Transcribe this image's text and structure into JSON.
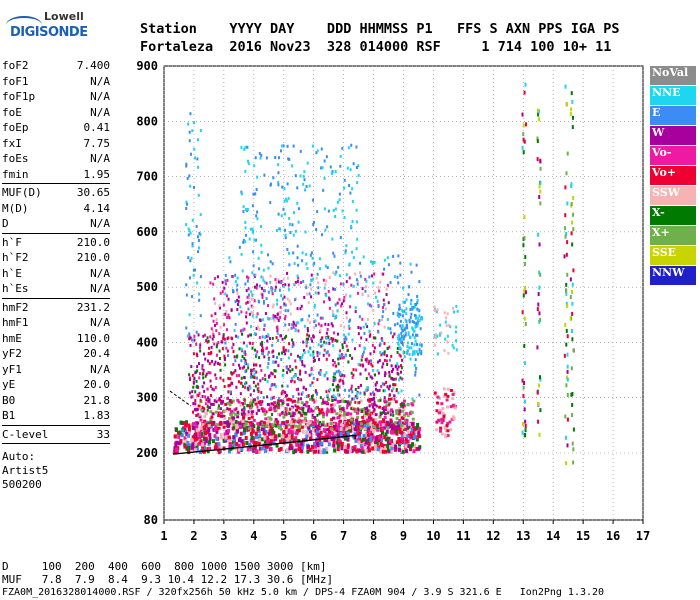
{
  "logo": {
    "line1": "Lowell",
    "line2": "DIGISONDE"
  },
  "header": {
    "line1": "Station    YYYY DAY    DDD HHMMSS P1   FFS S AXN PPS IGA PS",
    "line2": "Fortaleza  2016 Nov23  328 014000 RSF     1 714 100 10+ 11"
  },
  "params_groups": [
    [
      [
        "foF2",
        "7.400"
      ],
      [
        "foF1",
        "N/A"
      ],
      [
        "foF1p",
        "N/A"
      ],
      [
        "foE",
        "N/A"
      ],
      [
        "foEp",
        "0.41"
      ],
      [
        "fxI",
        "7.75"
      ],
      [
        "foEs",
        "N/A"
      ],
      [
        "fmin",
        "1.95"
      ]
    ],
    [
      [
        "MUF(D)",
        "30.65"
      ],
      [
        "M(D)",
        "4.14"
      ],
      [
        "D",
        "N/A"
      ]
    ],
    [
      [
        "h`F",
        "210.0"
      ],
      [
        "h`F2",
        "210.0"
      ],
      [
        "h`E",
        "N/A"
      ],
      [
        "h`Es",
        "N/A"
      ]
    ],
    [
      [
        "hmF2",
        "231.2"
      ],
      [
        "hmF1",
        "N/A"
      ],
      [
        "hmE",
        "110.0"
      ],
      [
        "yF2",
        "20.4"
      ],
      [
        "yF1",
        "N/A"
      ],
      [
        "yE",
        "20.0"
      ],
      [
        "B0",
        "21.8"
      ],
      [
        "B1",
        "1.83"
      ]
    ],
    [
      [
        "C-level",
        "33"
      ]
    ]
  ],
  "auto": {
    "l1": "Auto:",
    "l2": "Artist5",
    "l3": "500200"
  },
  "legend": [
    {
      "label": "NoVal",
      "color": "#8c8c8c"
    },
    {
      "label": "NNE",
      "color": "#1ed6f0"
    },
    {
      "label": "E",
      "color": "#3b8df5"
    },
    {
      "label": "W",
      "color": "#a8009c"
    },
    {
      "label": "Vo-",
      "color": "#ee1aa3"
    },
    {
      "label": "Vo+",
      "color": "#ee0033"
    },
    {
      "label": "SSW",
      "color": "#f5b3b3"
    },
    {
      "label": "X-",
      "color": "#007a00"
    },
    {
      "label": "X+",
      "color": "#6fb04b"
    },
    {
      "label": "SSE",
      "color": "#c8d400"
    },
    {
      "label": "NNW",
      "color": "#2020c8"
    }
  ],
  "chart_data": {
    "type": "scatter",
    "xlim": [
      1,
      17
    ],
    "ylim": [
      80,
      900
    ],
    "x_ticks": [
      "1",
      "2",
      "3",
      "4",
      "5",
      "6",
      "7",
      "8",
      "9",
      "10",
      "11",
      "12",
      "13",
      "14",
      "15",
      "16",
      "17"
    ],
    "y_ticks": [
      "80",
      "200",
      "300",
      "400",
      "500",
      "600",
      "700",
      "800",
      "900"
    ],
    "grid": true
  },
  "d_row": {
    "line1": "D     100  200  400  600  800 1000 1500 3000 [km]",
    "line2": "MUF   7.8  7.9  8.4  9.3 10.4 12.2 17.3 30.6 [MHz]"
  },
  "footer": "FZA0M_2016328014000.RSF / 320fx256h 50 kHz 5.0 km / DPS-4 FZA0M 904 / 3.9 S 321.6 E   Ion2Png 1.3.20"
}
